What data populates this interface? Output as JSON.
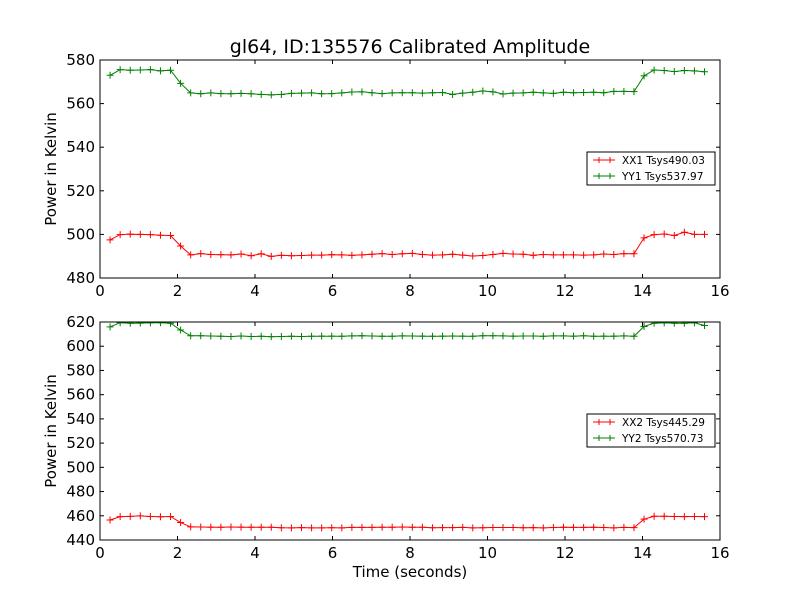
{
  "title": "gl64, ID:135576 Calibrated Amplitude",
  "colors": {
    "XX": "#ff0000",
    "YY": "#008000",
    "axes": "#000000",
    "background": "#ffffff"
  },
  "chart_data": [
    {
      "type": "line",
      "title": "gl64, ID:135576 Calibrated Amplitude",
      "xlabel": "",
      "ylabel": "Power in Kelvin",
      "xlim": [
        0,
        16
      ],
      "ylim": [
        480,
        580
      ],
      "xticks": [
        0,
        2,
        4,
        6,
        8,
        10,
        12,
        14,
        16
      ],
      "yticks": [
        480,
        500,
        520,
        540,
        560,
        580
      ],
      "grid": false,
      "legend_position": "right",
      "x": [
        0.26,
        0.52,
        0.78,
        1.04,
        1.3,
        1.56,
        1.82,
        2.08,
        2.34,
        2.6,
        2.86,
        3.12,
        3.38,
        3.64,
        3.9,
        4.16,
        4.42,
        4.68,
        4.94,
        5.2,
        5.46,
        5.72,
        5.98,
        6.24,
        6.5,
        6.76,
        7.02,
        7.28,
        7.54,
        7.8,
        8.06,
        8.32,
        8.58,
        8.84,
        9.1,
        9.36,
        9.62,
        9.88,
        10.14,
        10.4,
        10.66,
        10.92,
        11.18,
        11.44,
        11.7,
        11.96,
        12.22,
        12.48,
        12.74,
        13.0,
        13.26,
        13.52,
        13.78,
        14.04,
        14.3,
        14.56,
        14.82,
        15.08,
        15.34,
        15.6
      ],
      "series": [
        {
          "name": "XX1 Tsys490.03",
          "color": "#ff0000",
          "values": [
            497.5,
            499.9,
            500.1,
            500.0,
            499.9,
            499.6,
            499.5,
            494.7,
            490.6,
            491.2,
            490.8,
            490.7,
            490.6,
            491.0,
            490.2,
            491.1,
            489.9,
            490.4,
            490.2,
            490.3,
            490.5,
            490.5,
            490.7,
            490.6,
            490.4,
            490.6,
            490.9,
            491.2,
            490.8,
            491.1,
            491.3,
            490.8,
            490.5,
            490.6,
            490.9,
            490.5,
            490.1,
            490.3,
            490.8,
            491.3,
            491.0,
            490.9,
            490.4,
            490.8,
            490.6,
            490.6,
            490.6,
            490.5,
            490.6,
            491.0,
            490.8,
            491.2,
            491.1,
            498.4,
            499.9,
            500.2,
            499.5,
            501.0,
            500.0,
            500.0
          ]
        },
        {
          "name": "YY1 Tsys537.97",
          "color": "#008000",
          "values": [
            573.0,
            575.6,
            575.3,
            575.4,
            575.6,
            575.0,
            575.3,
            569.3,
            564.9,
            564.5,
            564.9,
            564.6,
            564.5,
            564.7,
            564.5,
            564.2,
            564.0,
            564.2,
            564.7,
            564.8,
            564.9,
            564.5,
            564.6,
            564.9,
            565.3,
            565.4,
            565.0,
            564.6,
            564.9,
            565.0,
            565.0,
            564.8,
            565.0,
            565.1,
            564.2,
            564.8,
            565.2,
            565.8,
            565.4,
            564.4,
            564.8,
            564.9,
            565.2,
            564.9,
            564.7,
            565.2,
            565.0,
            565.1,
            565.2,
            565.0,
            565.6,
            565.6,
            565.5,
            572.7,
            575.4,
            575.2,
            574.7,
            575.2,
            575.0,
            574.6
          ]
        }
      ]
    },
    {
      "type": "line",
      "title": "",
      "xlabel": "Time (seconds)",
      "ylabel": "Power in Kelvin",
      "xlim": [
        0,
        16
      ],
      "ylim": [
        440,
        620
      ],
      "xticks": [
        0,
        2,
        4,
        6,
        8,
        10,
        12,
        14,
        16
      ],
      "yticks": [
        440,
        460,
        480,
        500,
        520,
        540,
        560,
        580,
        600,
        620
      ],
      "grid": false,
      "legend_position": "right",
      "x": [
        0.26,
        0.52,
        0.78,
        1.04,
        1.3,
        1.56,
        1.82,
        2.08,
        2.34,
        2.6,
        2.86,
        3.12,
        3.38,
        3.64,
        3.9,
        4.16,
        4.42,
        4.68,
        4.94,
        5.2,
        5.46,
        5.72,
        5.98,
        6.24,
        6.5,
        6.76,
        7.02,
        7.28,
        7.54,
        7.8,
        8.06,
        8.32,
        8.58,
        8.84,
        9.1,
        9.36,
        9.62,
        9.88,
        10.14,
        10.4,
        10.66,
        10.92,
        11.18,
        11.44,
        11.7,
        11.96,
        12.22,
        12.48,
        12.74,
        13.0,
        13.26,
        13.52,
        13.78,
        14.04,
        14.3,
        14.56,
        14.82,
        15.08,
        15.34,
        15.6
      ],
      "series": [
        {
          "name": "XX2 Tsys445.29",
          "color": "#ff0000",
          "values": [
            456.5,
            459.3,
            459.5,
            459.9,
            459.4,
            459.2,
            459.4,
            454.4,
            450.8,
            450.7,
            450.6,
            450.5,
            450.7,
            450.6,
            450.5,
            450.5,
            450.5,
            450.1,
            450.0,
            450.2,
            450.0,
            450.0,
            450.1,
            450.0,
            450.4,
            450.4,
            450.4,
            450.5,
            450.5,
            450.7,
            450.5,
            450.5,
            450.1,
            450.2,
            450.2,
            450.4,
            450.0,
            450.1,
            450.3,
            450.3,
            450.3,
            450.1,
            450.2,
            450.0,
            450.3,
            450.5,
            450.4,
            450.4,
            450.5,
            450.3,
            450.0,
            450.4,
            450.2,
            457.2,
            459.6,
            459.6,
            459.4,
            459.3,
            459.4,
            459.3
          ]
        },
        {
          "name": "YY2 Tsys570.73",
          "color": "#008000",
          "values": [
            616.0,
            619.4,
            619.0,
            619.1,
            619.3,
            619.4,
            619.0,
            613.4,
            608.6,
            608.6,
            608.4,
            608.2,
            608.0,
            608.4,
            608.0,
            608.2,
            607.9,
            608.0,
            608.2,
            608.0,
            608.2,
            608.3,
            608.3,
            608.2,
            608.5,
            608.6,
            608.4,
            608.2,
            608.2,
            608.5,
            608.4,
            608.3,
            608.2,
            608.3,
            608.4,
            608.3,
            608.2,
            608.6,
            608.6,
            608.5,
            608.3,
            608.4,
            608.4,
            608.2,
            608.5,
            608.5,
            608.3,
            608.6,
            608.2,
            608.3,
            608.3,
            608.5,
            608.2,
            616.3,
            619.0,
            619.3,
            619.0,
            619.0,
            619.3,
            617.1
          ]
        }
      ]
    }
  ]
}
